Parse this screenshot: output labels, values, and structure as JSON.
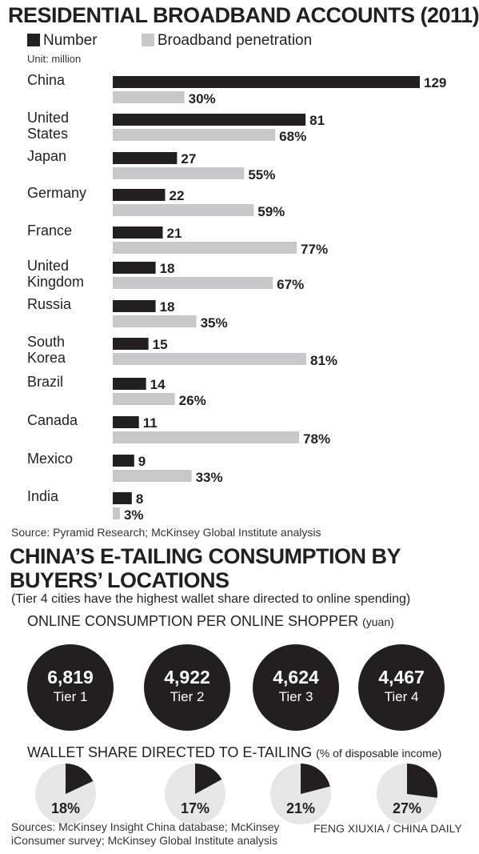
{
  "chart_data": [
    {
      "type": "bar",
      "title": "RESIDENTIAL BROADBAND ACCOUNTS (2011)",
      "unit": "Unit: million",
      "categories": [
        "China",
        "United States",
        "Japan",
        "Germany",
        "France",
        "United Kingdom",
        "Russia",
        "South Korea",
        "Brazil",
        "Canada",
        "Mexico",
        "India"
      ],
      "category_lines": [
        [
          "China"
        ],
        [
          "United",
          "States"
        ],
        [
          "Japan"
        ],
        [
          "Germany"
        ],
        [
          "France"
        ],
        [
          "United",
          "Kingdom"
        ],
        [
          "Russia"
        ],
        [
          "South",
          "Korea"
        ],
        [
          "Brazil"
        ],
        [
          "Canada"
        ],
        [
          "Mexico"
        ],
        [
          "India"
        ]
      ],
      "series": [
        {
          "name": "Number",
          "color": "#231f20",
          "values": [
            129,
            81,
            27,
            22,
            21,
            18,
            18,
            15,
            14,
            11,
            9,
            8
          ],
          "labels": [
            "129",
            "81",
            "27",
            "22",
            "21",
            "18",
            "18",
            "15",
            "14",
            "11",
            "9",
            "8"
          ]
        },
        {
          "name": "Broadband penetration",
          "color": "#c8c8ca",
          "values": [
            30,
            68,
            55,
            59,
            77,
            67,
            35,
            81,
            26,
            78,
            33,
            3
          ],
          "labels": [
            "30%",
            "68%",
            "55%",
            "59%",
            "77%",
            "67%",
            "35%",
            "81%",
            "26%",
            "78%",
            "33%",
            "3%"
          ]
        }
      ],
      "source": "Source: Pyramid Research; McKinsey Global Institute analysis"
    },
    {
      "type": "bubble",
      "title": "ONLINE CONSUMPTION PER ONLINE SHOPPER",
      "unit": "(yuan)",
      "categories": [
        "Tier 1",
        "Tier 2",
        "Tier 3",
        "Tier 4"
      ],
      "values": [
        6819,
        4922,
        4624,
        4467
      ],
      "labels": [
        "6,819",
        "4,922",
        "4,624",
        "4,467"
      ]
    },
    {
      "type": "pie",
      "title": "WALLET SHARE DIRECTED TO E-TAILING",
      "unit": "(% of disposable income)",
      "categories": [
        "Tier 1",
        "Tier 2",
        "Tier 3",
        "Tier 4"
      ],
      "values": [
        18,
        17,
        21,
        27
      ],
      "labels": [
        "18%",
        "17%",
        "21%",
        "27%"
      ],
      "colors": {
        "share": "#231f20",
        "rest": "#e6e6e7"
      }
    }
  ],
  "section2": {
    "title_line1": "CHINA’S E-TAILING CONSUMPTION BY",
    "title_line2": "BUYERS’ LOCATIONS",
    "subtitle": "(Tier 4 cities have the highest wallet share directed to online spending)"
  },
  "sources2_line1": "Sources: McKinsey Insight China database; McKinsey",
  "sources2_line2": "iConsumer survey; McKinsey Global Institute analysis",
  "credit": "FENG XIUXIA / CHINA DAILY"
}
